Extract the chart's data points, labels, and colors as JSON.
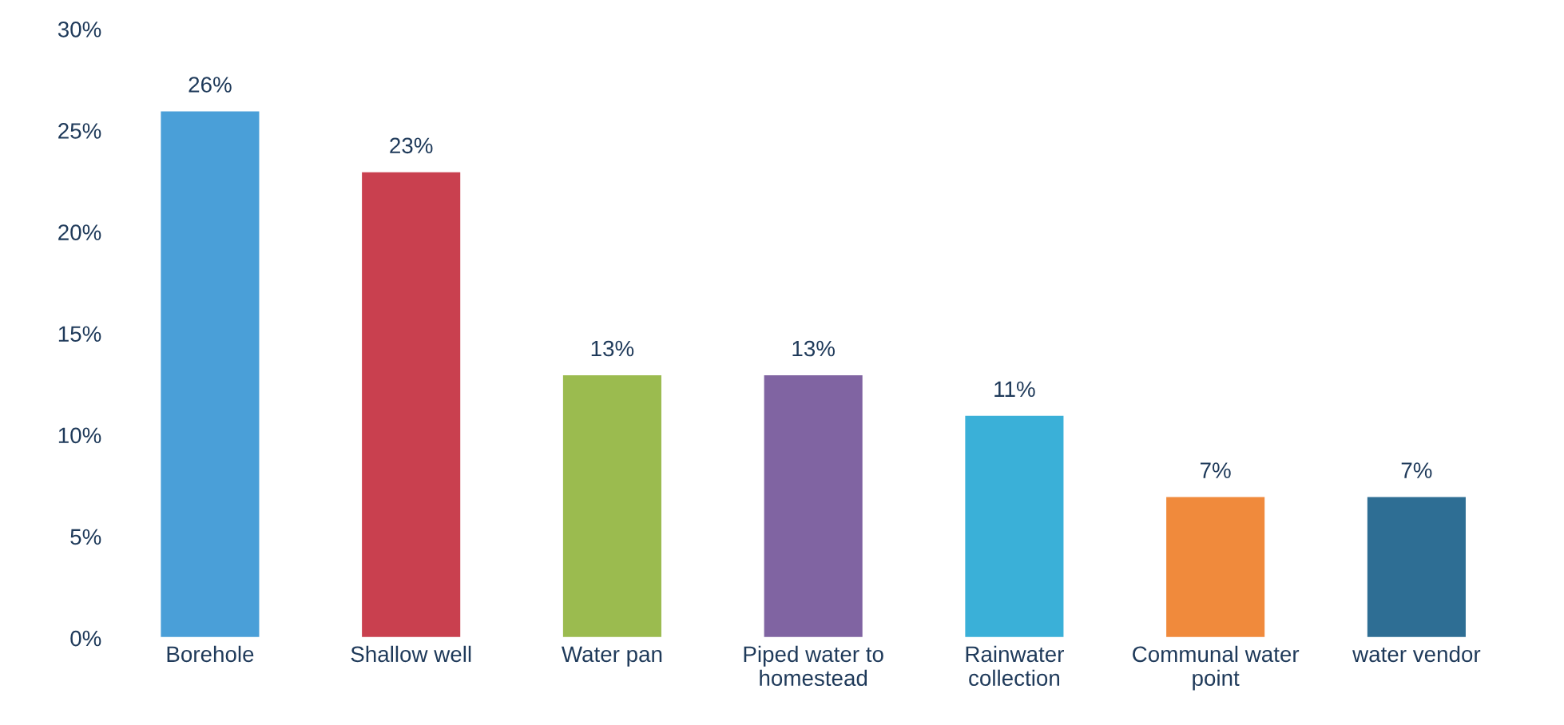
{
  "chart_data": {
    "type": "bar",
    "categories": [
      "Borehole",
      "Shallow well",
      "Water pan",
      "Piped water to\nhomestead",
      "Rainwater\ncollection",
      "Communal water\npoint",
      "water vendor"
    ],
    "values": [
      26,
      23,
      13,
      13,
      11,
      7,
      7
    ],
    "value_labels": [
      "26%",
      "23%",
      "13%",
      "13%",
      "11%",
      "7%",
      "7%"
    ],
    "colors": [
      "#4a9fd8",
      "#c9404f",
      "#9bbb4f",
      "#8064a2",
      "#3ab0d8",
      "#f08a3c",
      "#2e6e94"
    ],
    "ylim": [
      0,
      30
    ],
    "yticks": [
      {
        "value": 0,
        "label": "0%"
      },
      {
        "value": 5,
        "label": "5%"
      },
      {
        "value": 10,
        "label": "10%"
      },
      {
        "value": 15,
        "label": "15%"
      },
      {
        "value": 20,
        "label": "20%"
      },
      {
        "value": 25,
        "label": "25%"
      },
      {
        "value": 30,
        "label": "30%"
      }
    ],
    "grid": false,
    "legend": false
  }
}
